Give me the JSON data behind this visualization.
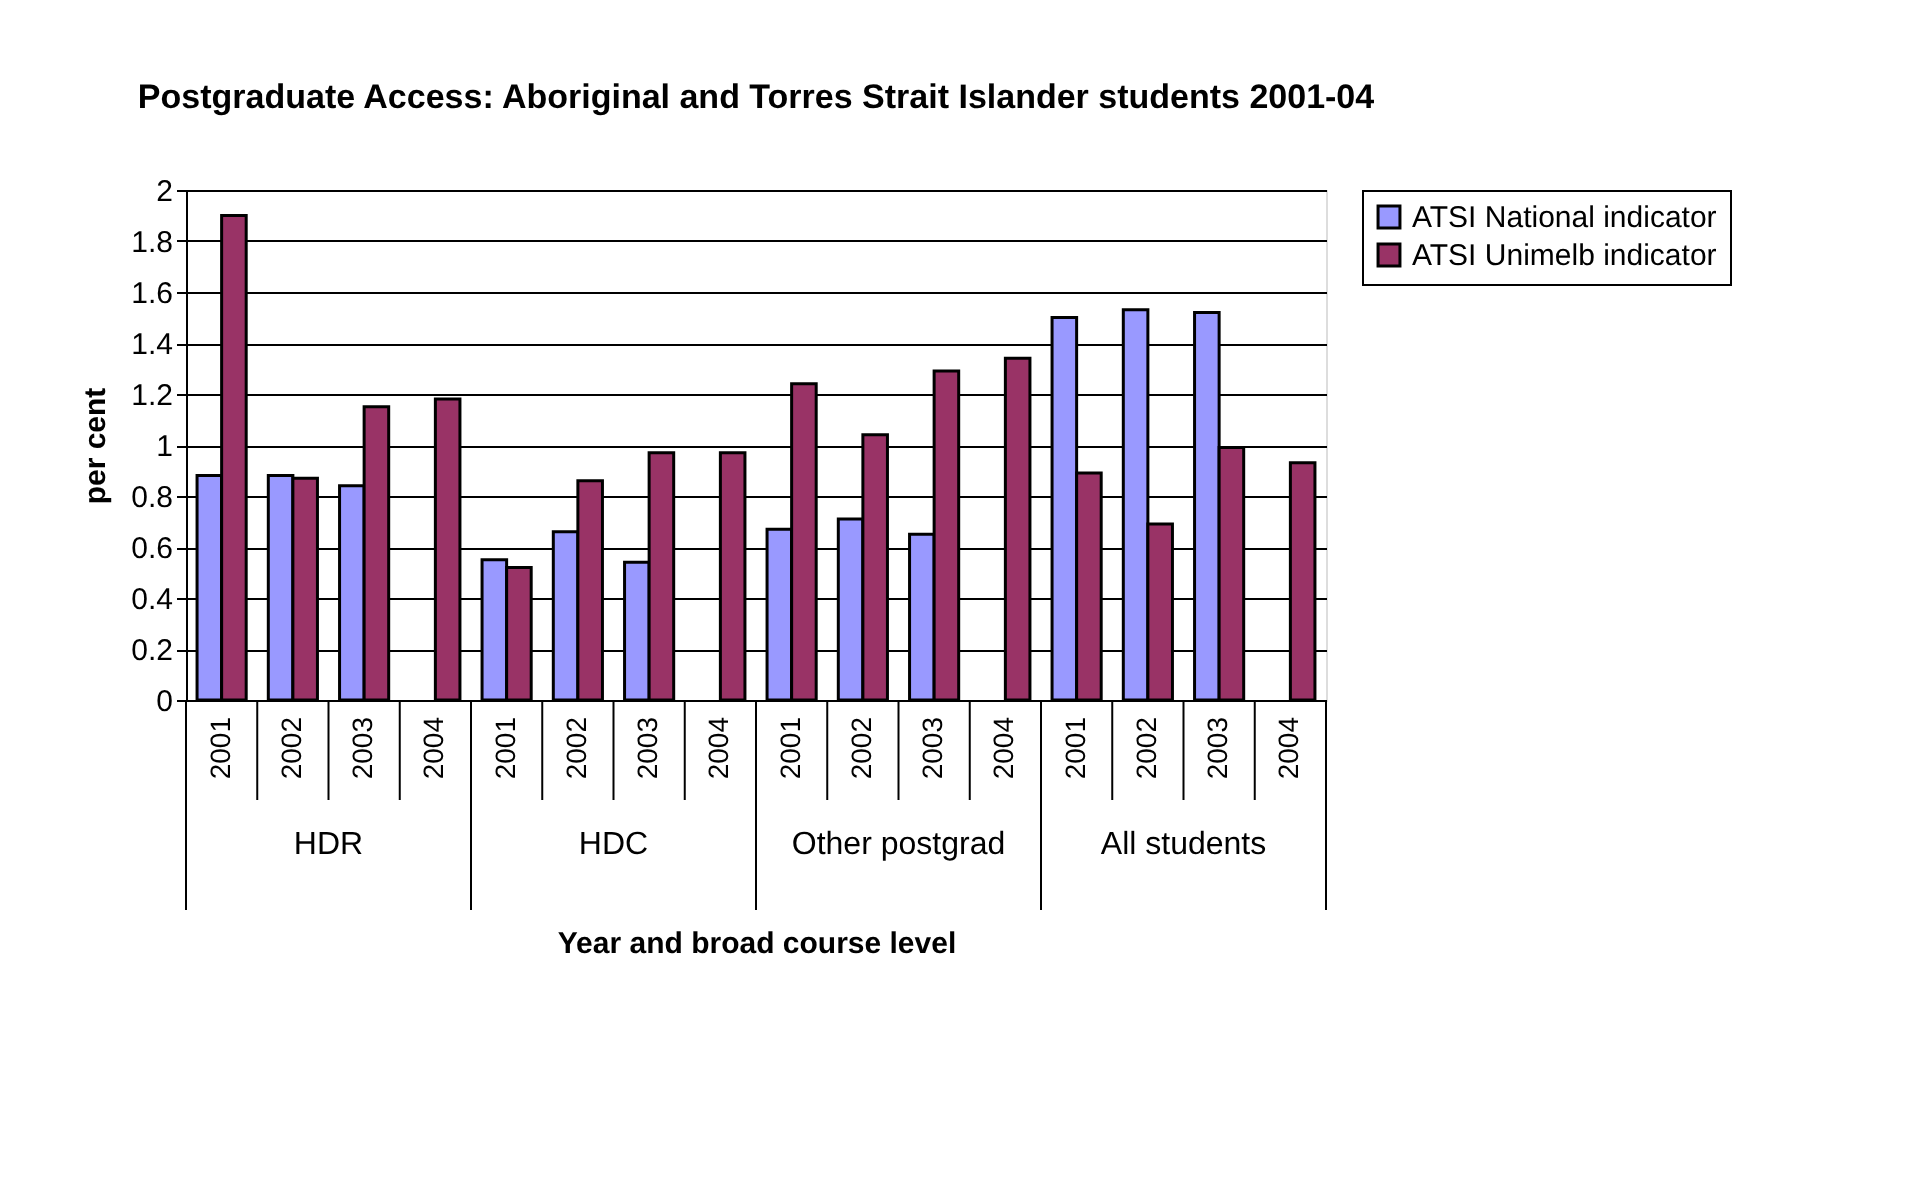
{
  "chart_data": {
    "type": "bar",
    "title": "Postgraduate Access: Aboriginal and Torres Strait Islander students 2001-04",
    "xlabel": "Year and broad course level",
    "ylabel": "per cent",
    "categories": [
      "2001",
      "2002",
      "2003",
      "2004",
      "2001",
      "2002",
      "2003",
      "2004",
      "2001",
      "2002",
      "2003",
      "2004",
      "2001",
      "2002",
      "2003",
      "2004"
    ],
    "annotations": [
      "HDR",
      "HDC",
      "Other postgrad",
      "All students"
    ],
    "series": [
      {
        "name": "ATSI National indicator",
        "color": "#9999ff",
        "values": [
          0.88,
          0.88,
          0.84,
          null,
          0.55,
          0.66,
          0.54,
          null,
          0.67,
          0.71,
          0.65,
          null,
          1.5,
          1.53,
          1.52,
          null
        ]
      },
      {
        "name": "ATSI Unimelb indicator",
        "color": "#993366",
        "values": [
          1.9,
          0.87,
          1.15,
          1.18,
          0.52,
          0.86,
          0.97,
          0.97,
          1.24,
          1.04,
          1.29,
          1.34,
          0.89,
          0.69,
          0.99,
          0.93
        ]
      }
    ],
    "ylim": [
      0,
      2
    ],
    "yticks": [
      0,
      0.2,
      0.4,
      0.6,
      0.8,
      1,
      1.2,
      1.4,
      1.6,
      1.8,
      2
    ],
    "grid": "y",
    "legend": "right"
  }
}
